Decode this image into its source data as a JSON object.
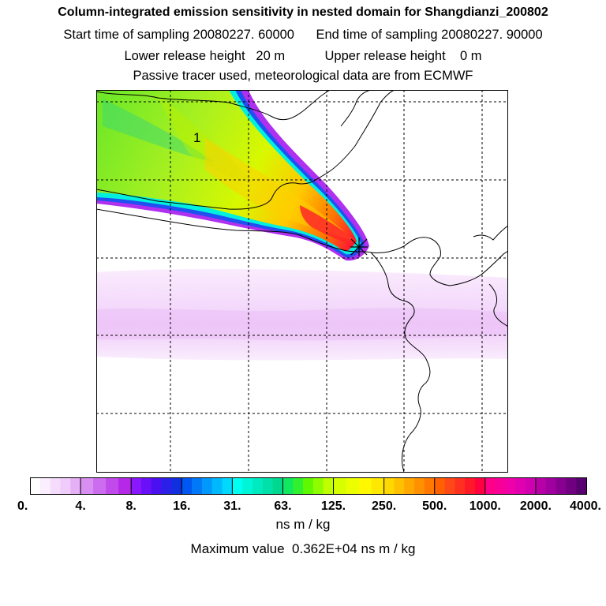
{
  "header": {
    "title": "Column-integrated emission sensitivity in nested domain for Shangdianzi_200802",
    "start_label": "Start time of sampling",
    "start_value": "20080227. 60000",
    "end_label": "End time of sampling",
    "end_value": "20080227. 90000",
    "lower_label": "Lower release height",
    "lower_value": "20 m",
    "upper_label": "Upper release height",
    "upper_value": "0 m",
    "note": "Passive tracer used, meteorological data are from ECMWF"
  },
  "map": {
    "marker_label": "1",
    "receptor_symbol": "star"
  },
  "colorbar": {
    "tick_labels": [
      "0.",
      "4.",
      "8.",
      "16.",
      "31.",
      "63.",
      "125.",
      "250.",
      "500.",
      "1000.",
      "2000.",
      "4000."
    ],
    "colors": [
      [
        "#ffffff",
        "#fbeefe",
        "#f5dcfc",
        "#f0ccfa",
        "#e6b0f6"
      ],
      [
        "#d98ef2",
        "#cc6cee",
        "#c04aea",
        "#b528e8"
      ],
      [
        "#8a18ff",
        "#6a10f8",
        "#4a10f0",
        "#2a20e8",
        "#1030e0"
      ],
      [
        "#0058f0",
        "#0078f8",
        "#0098fa",
        "#00b8fc",
        "#00d8fe"
      ],
      [
        "#00fff0",
        "#00f4d8",
        "#00eac0",
        "#00e0a8",
        "#00d890"
      ],
      [
        "#10e860",
        "#30f030",
        "#60f800",
        "#90fc00",
        "#c0ff00"
      ],
      [
        "#d8ff00",
        "#ecff00",
        "#fff800",
        "#ffe800"
      ],
      [
        "#ffd800",
        "#ffc000",
        "#ffa800",
        "#ff9000",
        "#ff7800"
      ],
      [
        "#ff6000",
        "#ff4818",
        "#ff3020",
        "#ff1828",
        "#ff0040"
      ],
      [
        "#ff0088",
        "#f80098",
        "#f000a8",
        "#e000b0",
        "#d000b0"
      ],
      [
        "#b800a8",
        "#a000a0",
        "#880090",
        "#700080",
        "#580070"
      ]
    ],
    "unit": "ns m / kg",
    "max_label": "Maximum value",
    "max_value": "0.362E+04 ns m / kg"
  }
}
